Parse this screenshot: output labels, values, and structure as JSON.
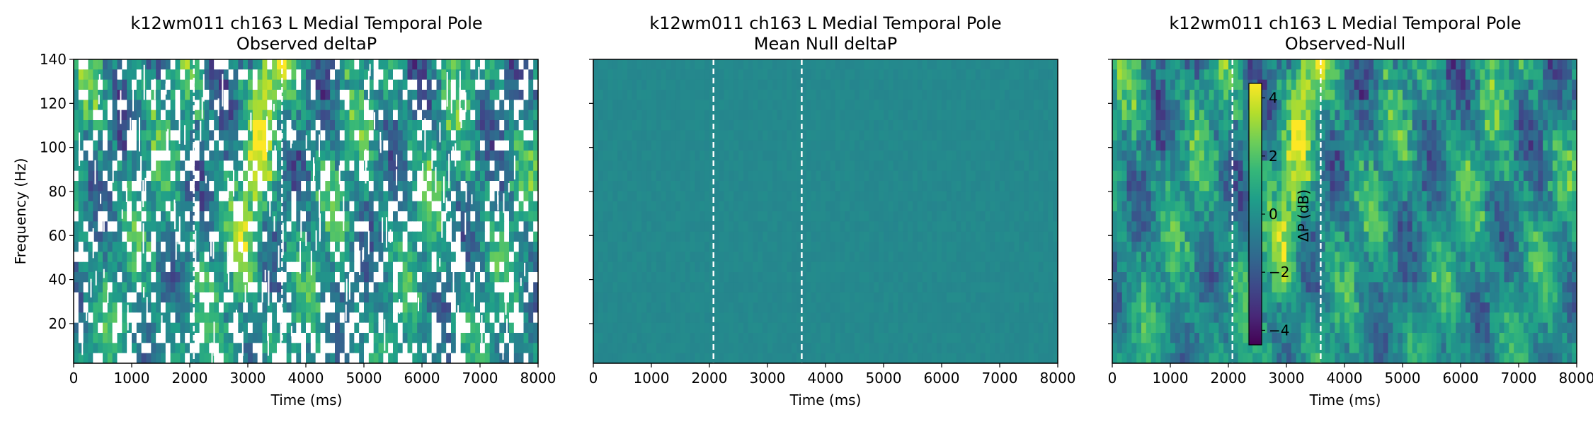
{
  "chart_data": [
    {
      "type": "heatmap",
      "title_line1": "k12wm011 ch163 L Medial Temporal Pole",
      "title_line2": "Observed deltaP",
      "xlabel": "Time (ms)",
      "ylabel": "Frequency (Hz)",
      "xlim": [
        0,
        8000
      ],
      "ylim": [
        2,
        140
      ],
      "xticks": [
        0,
        1000,
        2000,
        3000,
        4000,
        5000,
        6000,
        7000,
        8000
      ],
      "yticks": [
        20,
        40,
        60,
        80,
        100,
        120,
        140
      ],
      "vlines": [
        2070,
        3590
      ],
      "masked": true
    },
    {
      "type": "heatmap",
      "title_line1": "k12wm011 ch163 L Medial Temporal Pole",
      "title_line2": "Mean Null deltaP",
      "xlabel": "Time (ms)",
      "xlim": [
        0,
        8000
      ],
      "ylim": [
        2,
        140
      ],
      "xticks": [
        0,
        1000,
        2000,
        3000,
        4000,
        5000,
        6000,
        7000,
        8000
      ],
      "yticks": [
        20,
        40,
        60,
        80,
        100,
        120,
        140
      ],
      "vlines": [
        2070,
        3590
      ],
      "uniform": true
    },
    {
      "type": "heatmap",
      "title_line1": "k12wm011 ch163 L Medial Temporal Pole",
      "title_line2": "Observed-Null",
      "xlabel": "Time (ms)",
      "xlim": [
        0,
        8000
      ],
      "ylim": [
        2,
        140
      ],
      "xticks": [
        0,
        1000,
        2000,
        3000,
        4000,
        5000,
        6000,
        7000,
        8000
      ],
      "yticks": [
        20,
        40,
        60,
        80,
        100,
        120,
        140
      ],
      "vlines": [
        2070,
        3590
      ],
      "colorbar": {
        "label": "ΔP (dB)",
        "range": [
          -4.5,
          4.5
        ],
        "ticks": [
          -4,
          -2,
          0,
          2,
          4
        ],
        "tick_labels": [
          "−4",
          "−2",
          "0",
          "2",
          "4"
        ]
      }
    }
  ],
  "colormap": [
    "#440154",
    "#482878",
    "#3e4989",
    "#31688e",
    "#26828e",
    "#1f9e89",
    "#35b779",
    "#6ece58",
    "#b5de2b",
    "#fde725"
  ]
}
